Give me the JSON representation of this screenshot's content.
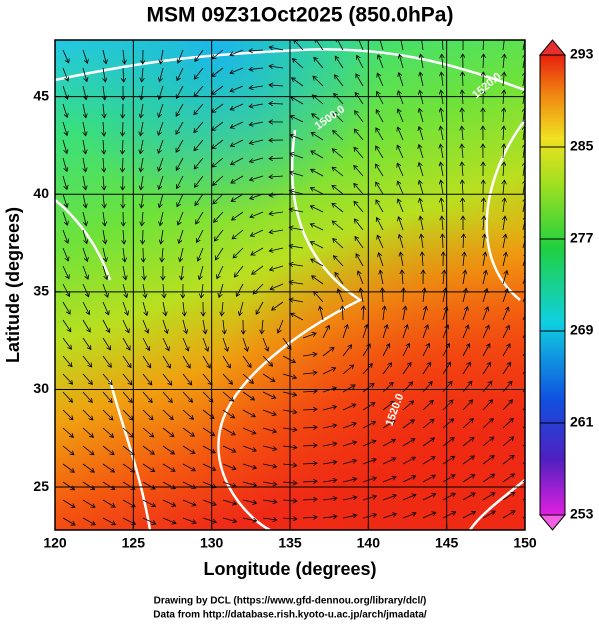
{
  "chart_data": {
    "type": "map",
    "title": "MSM 09Z31Oct2025 (850.0hPa)",
    "xlabel": "Longitude (degrees)",
    "ylabel": "Latitude  (degrees)",
    "xlim": [
      120,
      150
    ],
    "ylim": [
      22.8,
      47.9
    ],
    "xticks": [
      120,
      125,
      130,
      135,
      140,
      145,
      150
    ],
    "yticks": [
      25,
      30,
      35,
      40,
      45
    ],
    "grid": true,
    "colorbar": {
      "lim": [
        253,
        293
      ],
      "ticks": [
        253,
        261,
        269,
        277,
        285,
        293
      ]
    },
    "contour_labels": [
      "1500.0",
      "1520.0",
      "1520.0"
    ],
    "footer": [
      "Drawing by DCL (https://www.gfd-dennou.org/library/dcl/)",
      "Data from http://database.rish.kyoto-u.ac.jp/arch/jmadata/"
    ]
  }
}
